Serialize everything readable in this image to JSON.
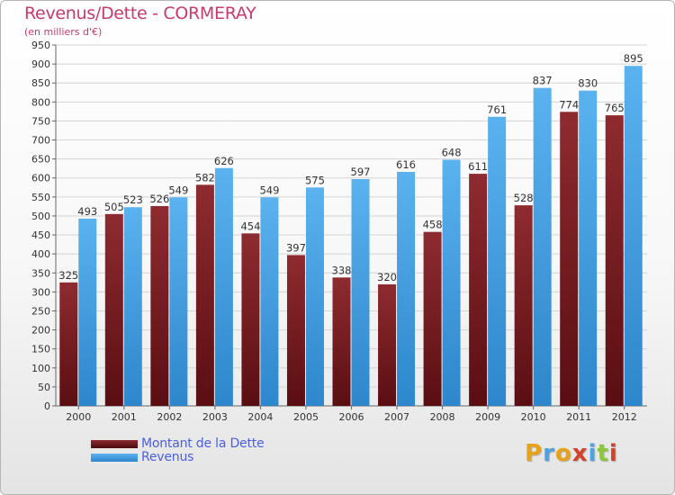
{
  "title": "Revenus/Dette - CORMERAY",
  "subtitle": "(en milliers d'€)",
  "brand": "Proxiti",
  "colors": {
    "dette": "#7a1f24",
    "revenus": "#4aa3e3"
  },
  "chart_data": {
    "type": "bar",
    "categories": [
      "2000",
      "2001",
      "2002",
      "2003",
      "2004",
      "2005",
      "2006",
      "2007",
      "2008",
      "2009",
      "2010",
      "2011",
      "2012"
    ],
    "series": [
      {
        "name": "Montant de la Dette",
        "values": [
          325,
          505,
          526,
          582,
          454,
          397,
          338,
          320,
          458,
          611,
          528,
          774,
          765
        ]
      },
      {
        "name": "Revenus",
        "values": [
          493,
          523,
          549,
          626,
          549,
          575,
          597,
          616,
          648,
          761,
          837,
          830,
          895
        ]
      }
    ],
    "ylim": [
      0,
      950
    ],
    "yticks": [
      0,
      50,
      100,
      150,
      200,
      250,
      300,
      350,
      400,
      450,
      500,
      550,
      600,
      650,
      700,
      750,
      800,
      850,
      900,
      950
    ],
    "grid": true,
    "legend": "bottom-left"
  }
}
